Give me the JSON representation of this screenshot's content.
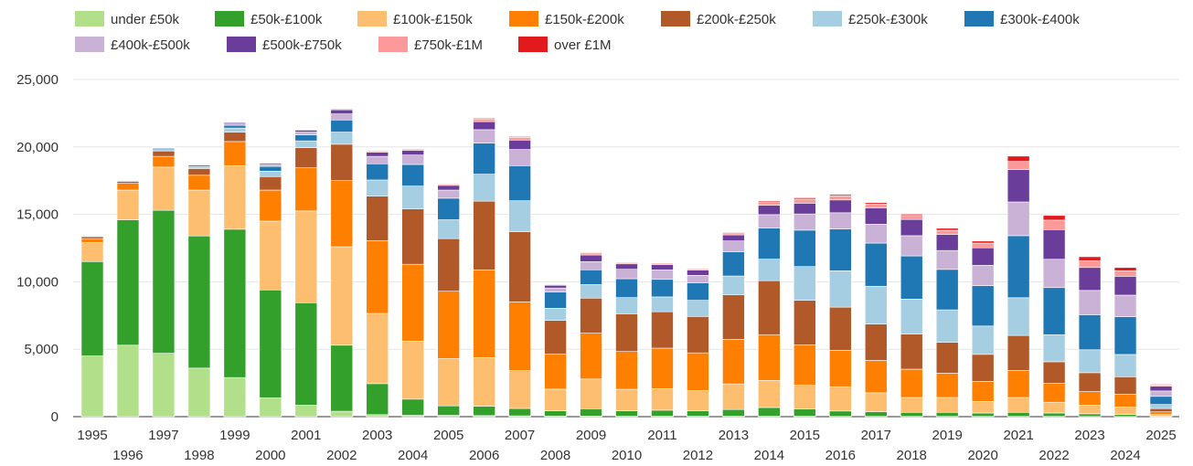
{
  "chart_data": {
    "type": "bar",
    "stacked": true,
    "title": "",
    "xlabel": "",
    "ylabel": "",
    "ylim": [
      0,
      25000
    ],
    "yticks": [
      0,
      5000,
      10000,
      15000,
      20000,
      25000
    ],
    "ytick_labels": [
      "0",
      "5,000",
      "10,000",
      "15,000",
      "20,000",
      "25,000"
    ],
    "grid": true,
    "legend_position": "top-left",
    "categories": [
      "1995",
      "1996",
      "1997",
      "1998",
      "1999",
      "2000",
      "2001",
      "2002",
      "2003",
      "2004",
      "2005",
      "2006",
      "2007",
      "2008",
      "2009",
      "2010",
      "2011",
      "2012",
      "2013",
      "2014",
      "2015",
      "2016",
      "2017",
      "2018",
      "2019",
      "2020",
      "2021",
      "2022",
      "2023",
      "2024",
      "2025"
    ],
    "series": [
      {
        "name": "under £50k",
        "color": "#b2df8a",
        "values": [
          4500,
          5300,
          4700,
          3600,
          2900,
          1400,
          850,
          400,
          150,
          100,
          100,
          80,
          60,
          40,
          40,
          30,
          30,
          30,
          30,
          30,
          30,
          20,
          20,
          20,
          20,
          20,
          20,
          20,
          10,
          10,
          5
        ]
      },
      {
        "name": "£50k-£100k",
        "color": "#33a02c",
        "values": [
          7000,
          9300,
          10600,
          9800,
          11000,
          8000,
          7600,
          4900,
          2300,
          1200,
          700,
          700,
          550,
          400,
          550,
          400,
          450,
          400,
          500,
          650,
          550,
          400,
          350,
          300,
          300,
          250,
          300,
          250,
          200,
          150,
          50
        ]
      },
      {
        "name": "£100k-£150k",
        "color": "#fdbf6f",
        "values": [
          1400,
          2200,
          3200,
          3400,
          4700,
          5100,
          6800,
          7300,
          5200,
          4300,
          3500,
          3600,
          2800,
          1600,
          2200,
          1600,
          1600,
          1500,
          1900,
          2000,
          1750,
          1800,
          1400,
          1100,
          1100,
          850,
          1100,
          800,
          650,
          550,
          100
        ]
      },
      {
        "name": "£150k-£200k",
        "color": "#ff7f00",
        "values": [
          300,
          500,
          800,
          1100,
          1800,
          2300,
          3200,
          4900,
          5400,
          5700,
          5000,
          6500,
          5100,
          2600,
          3400,
          2800,
          3000,
          2800,
          3300,
          3400,
          3000,
          2700,
          2400,
          2100,
          1800,
          1500,
          2000,
          1400,
          1000,
          950,
          200
        ]
      },
      {
        "name": "£200k-£250k",
        "color": "#b15928",
        "values": [
          150,
          150,
          400,
          500,
          700,
          1000,
          1500,
          2700,
          3300,
          4100,
          3900,
          5100,
          5200,
          2500,
          2600,
          2800,
          2700,
          2700,
          3300,
          4000,
          3300,
          3200,
          2700,
          2600,
          2300,
          2000,
          2600,
          1600,
          1400,
          1300,
          250
        ]
      },
      {
        "name": "£250k-£300k",
        "color": "#a6cee3",
        "values": [
          50,
          50,
          100,
          150,
          300,
          400,
          500,
          900,
          1200,
          1700,
          1400,
          2000,
          2300,
          900,
          1000,
          1200,
          1100,
          1200,
          1400,
          1600,
          2500,
          2700,
          2800,
          2600,
          2400,
          2100,
          2800,
          2000,
          1700,
          1650,
          300
        ]
      },
      {
        "name": "£300k-£400k",
        "color": "#1f78b4",
        "values": [
          50,
          50,
          100,
          100,
          200,
          350,
          450,
          900,
          1200,
          1600,
          1600,
          2300,
          2600,
          1200,
          1100,
          1400,
          1300,
          1300,
          1800,
          2300,
          2700,
          3100,
          3200,
          3200,
          3000,
          3000,
          4600,
          3500,
          2600,
          2800,
          600
        ]
      },
      {
        "name": "£400k-£500k",
        "color": "#cab2d6",
        "values": [
          20,
          20,
          40,
          40,
          100,
          150,
          200,
          450,
          550,
          700,
          600,
          1000,
          1200,
          300,
          600,
          700,
          700,
          550,
          800,
          1000,
          1200,
          1200,
          1400,
          1500,
          1400,
          1500,
          2500,
          2100,
          1800,
          1600,
          400
        ]
      },
      {
        "name": "£500k-£750k",
        "color": "#6a3d9a",
        "values": [
          20,
          20,
          40,
          40,
          100,
          100,
          150,
          300,
          300,
          350,
          350,
          600,
          700,
          200,
          500,
          400,
          400,
          400,
          450,
          700,
          800,
          950,
          1200,
          1200,
          1200,
          1300,
          2400,
          2200,
          1700,
          1400,
          350
        ]
      },
      {
        "name": "£750k-£1M",
        "color": "#fb9a99",
        "values": [
          5,
          5,
          10,
          10,
          30,
          30,
          40,
          80,
          100,
          100,
          100,
          200,
          200,
          60,
          150,
          100,
          100,
          80,
          150,
          200,
          300,
          300,
          300,
          300,
          300,
          350,
          600,
          700,
          500,
          400,
          100
        ]
      },
      {
        "name": "over £1M",
        "color": "#e31a1c",
        "values": [
          5,
          5,
          5,
          5,
          10,
          10,
          10,
          20,
          30,
          30,
          30,
          60,
          60,
          20,
          50,
          40,
          40,
          40,
          50,
          100,
          100,
          100,
          100,
          100,
          150,
          150,
          400,
          350,
          300,
          250,
          50
        ]
      }
    ]
  }
}
